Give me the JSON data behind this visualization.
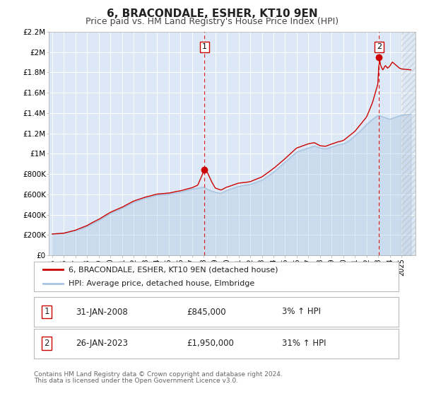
{
  "title": "6, BRACONDALE, ESHER, KT10 9EN",
  "subtitle": "Price paid vs. HM Land Registry's House Price Index (HPI)",
  "title_fontsize": 11,
  "subtitle_fontsize": 9,
  "hpi_color": "#a8c4e0",
  "price_color": "#cc0000",
  "background_color": "#dce8f5",
  "plot_bg_color": "#dce8f5",
  "ylim": [
    0,
    2200000
  ],
  "xlim": [
    1994.7,
    2026.2
  ],
  "yticks": [
    0,
    200000,
    400000,
    600000,
    800000,
    1000000,
    1200000,
    1400000,
    1600000,
    1800000,
    2000000,
    2200000
  ],
  "ytick_labels": [
    "£0",
    "£200K",
    "£400K",
    "£600K",
    "£800K",
    "£1M",
    "£1.2M",
    "£1.4M",
    "£1.6M",
    "£1.8M",
    "£2M",
    "£2.2M"
  ],
  "sale1_x": 2008.08,
  "sale1_y": 845000,
  "sale1_label": "1",
  "sale1_date": "31-JAN-2008",
  "sale1_price": "£845,000",
  "sale1_hpi": "3% ↑ HPI",
  "sale2_x": 2023.07,
  "sale2_y": 1950000,
  "sale2_label": "2",
  "sale2_date": "26-JAN-2023",
  "sale2_price": "£1,950,000",
  "sale2_hpi": "31% ↑ HPI",
  "legend_line1": "6, BRACONDALE, ESHER, KT10 9EN (detached house)",
  "legend_line2": "HPI: Average price, detached house, Elmbridge",
  "footer1": "Contains HM Land Registry data © Crown copyright and database right 2024.",
  "footer2": "This data is licensed under the Open Government Licence v3.0.",
  "grid_color": "#ffffff",
  "dashed_line_color": "#cc0000",
  "hatch_color": "#cccccc"
}
